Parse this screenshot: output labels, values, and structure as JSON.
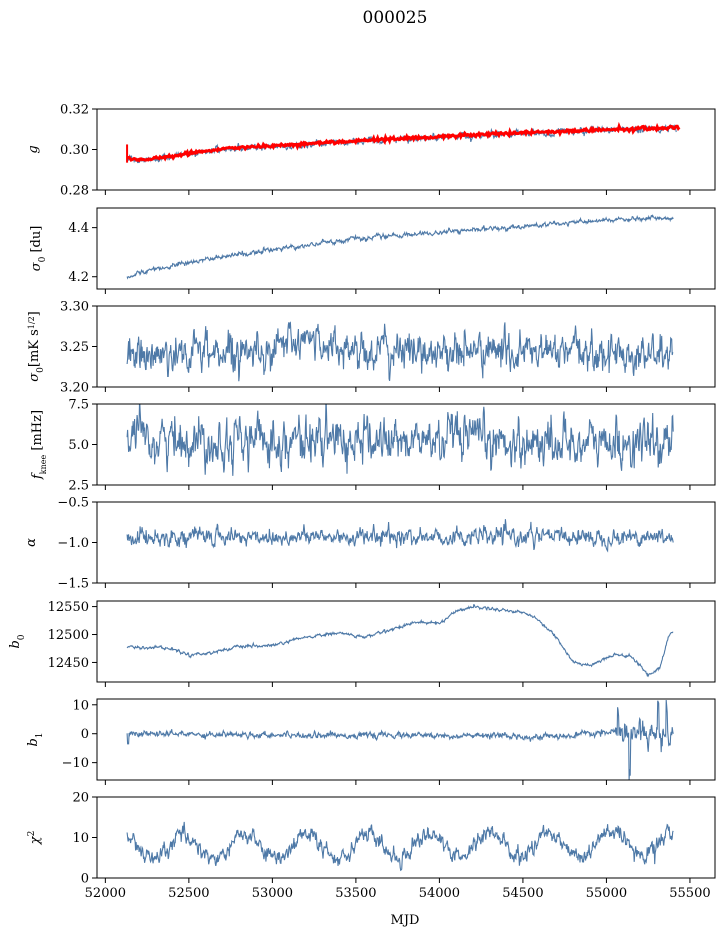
{
  "figure": {
    "title": "000025",
    "xlabel": "MJD",
    "xlim": [
      51950,
      55650
    ],
    "xticks": [
      52000,
      52500,
      53000,
      53500,
      54000,
      54500,
      55000,
      55500
    ],
    "xtick_labels": [
      "52000",
      "52500",
      "53000",
      "53500",
      "54000",
      "54500",
      "55000",
      "55500"
    ],
    "series_color": "#4e79a7",
    "fit_color": "#ff0000"
  },
  "chart_data": [
    {
      "type": "line",
      "ylabel": "g",
      "ylim": [
        0.28,
        0.32
      ],
      "yticks": [
        0.28,
        0.3,
        0.32
      ],
      "ytick_labels": [
        "0.28",
        "0.30",
        "0.32"
      ],
      "x_range": [
        52130,
        55420
      ],
      "trend": [
        [
          52130,
          0.296
        ],
        [
          52200,
          0.2945
        ],
        [
          52400,
          0.2965
        ],
        [
          52700,
          0.3
        ],
        [
          53000,
          0.3015
        ],
        [
          53500,
          0.304
        ],
        [
          54000,
          0.306
        ],
        [
          54500,
          0.308
        ],
        [
          55000,
          0.3095
        ],
        [
          55420,
          0.3105
        ]
      ],
      "noise": 0.0007,
      "fit": true
    },
    {
      "type": "line",
      "ylabel": "σ0 [du]",
      "ylim": [
        4.15,
        4.48
      ],
      "yticks": [
        4.2,
        4.4
      ],
      "ytick_labels": [
        "4.2",
        "4.4"
      ],
      "x_range": [
        52130,
        55400
      ],
      "trend": [
        [
          52130,
          4.205
        ],
        [
          52500,
          4.26
        ],
        [
          53000,
          4.31
        ],
        [
          53500,
          4.355
        ],
        [
          54000,
          4.38
        ],
        [
          54500,
          4.405
        ],
        [
          55000,
          4.43
        ],
        [
          55400,
          4.44
        ]
      ],
      "noise": 0.004
    },
    {
      "type": "line",
      "ylabel": "σ0[mK s^1/2]",
      "ylim": [
        3.2,
        3.3
      ],
      "yticks": [
        3.2,
        3.25,
        3.3
      ],
      "ytick_labels": [
        "3.20",
        "3.25",
        "3.30"
      ],
      "x_range": [
        52130,
        55400
      ],
      "trend": [
        [
          52130,
          3.235
        ],
        [
          52300,
          3.24
        ],
        [
          53000,
          3.248
        ],
        [
          53250,
          3.258
        ],
        [
          53500,
          3.245
        ],
        [
          54500,
          3.243
        ],
        [
          55400,
          3.24
        ]
      ],
      "noise": 0.01
    },
    {
      "type": "line",
      "ylabel": "f_knee [mHz]",
      "ylim": [
        2.5,
        7.5
      ],
      "yticks": [
        2.5,
        5.0,
        7.5
      ],
      "ytick_labels": [
        "2.5",
        "5.0",
        "7.5"
      ],
      "x_range": [
        52130,
        55400
      ],
      "trend": [
        [
          52130,
          5.3
        ],
        [
          54000,
          5.2
        ],
        [
          55400,
          5.0
        ]
      ],
      "noise": 0.6
    },
    {
      "type": "line",
      "ylabel": "α",
      "ylim": [
        -1.5,
        -0.5
      ],
      "yticks": [
        -1.5,
        -1.0,
        -0.5
      ],
      "ytick_labels": [
        "−1.5",
        "−1.0",
        "−0.5"
      ],
      "x_range": [
        52130,
        55400
      ],
      "trend": [
        [
          52130,
          -0.93
        ],
        [
          55400,
          -0.93
        ]
      ],
      "noise": 0.045
    },
    {
      "type": "line",
      "ylabel": "b0",
      "ylim": [
        12415,
        12560
      ],
      "yticks": [
        12450,
        12500,
        12550
      ],
      "ytick_labels": [
        "12450",
        "12500",
        "12550"
      ],
      "x_range": [
        52130,
        55400
      ],
      "trend": [
        [
          52130,
          12478
        ],
        [
          52200,
          12476
        ],
        [
          52300,
          12478
        ],
        [
          52400,
          12474
        ],
        [
          52500,
          12464
        ],
        [
          52600,
          12466
        ],
        [
          52800,
          12478
        ],
        [
          53000,
          12480
        ],
        [
          53200,
          12495
        ],
        [
          53400,
          12503
        ],
        [
          53550,
          12495
        ],
        [
          53700,
          12508
        ],
        [
          53850,
          12522
        ],
        [
          54000,
          12520
        ],
        [
          54100,
          12542
        ],
        [
          54200,
          12550
        ],
        [
          54350,
          12545
        ],
        [
          54500,
          12540
        ],
        [
          54600,
          12525
        ],
        [
          54700,
          12495
        ],
        [
          54800,
          12450
        ],
        [
          54900,
          12445
        ],
        [
          55050,
          12465
        ],
        [
          55150,
          12460
        ],
        [
          55250,
          12428
        ],
        [
          55320,
          12440
        ],
        [
          55370,
          12495
        ],
        [
          55400,
          12506
        ]
      ],
      "noise": 1.2
    },
    {
      "type": "line",
      "ylabel": "b1",
      "ylim": [
        -16,
        12
      ],
      "yticks": [
        -10,
        0,
        10
      ],
      "ytick_labels": [
        "−10",
        "0",
        "10"
      ],
      "x_range": [
        52130,
        55400
      ],
      "trend": [
        [
          52130,
          0
        ],
        [
          54750,
          -1
        ],
        [
          55000,
          0.5
        ],
        [
          55400,
          0
        ]
      ],
      "noise": 0.45,
      "spikes": [
        [
          52135,
          -3.5
        ],
        [
          55070,
          6.5
        ],
        [
          55100,
          -3
        ],
        [
          55140,
          -13
        ],
        [
          55200,
          5
        ],
        [
          55250,
          -6
        ],
        [
          55310,
          10
        ],
        [
          55330,
          -5
        ],
        [
          55360,
          9
        ],
        [
          55380,
          -4
        ]
      ]
    },
    {
      "type": "line",
      "ylabel": "χ²",
      "ylim": [
        0,
        20
      ],
      "yticks": [
        0,
        10,
        20
      ],
      "ytick_labels": [
        "0",
        "10",
        "20"
      ],
      "x_range": [
        52130,
        55400
      ],
      "trend": [
        [
          52130,
          7.5
        ],
        [
          55400,
          8.5
        ]
      ],
      "seasonal_amplitude": 3,
      "seasonal_period_days": 365.25,
      "noise": 0.9
    }
  ]
}
